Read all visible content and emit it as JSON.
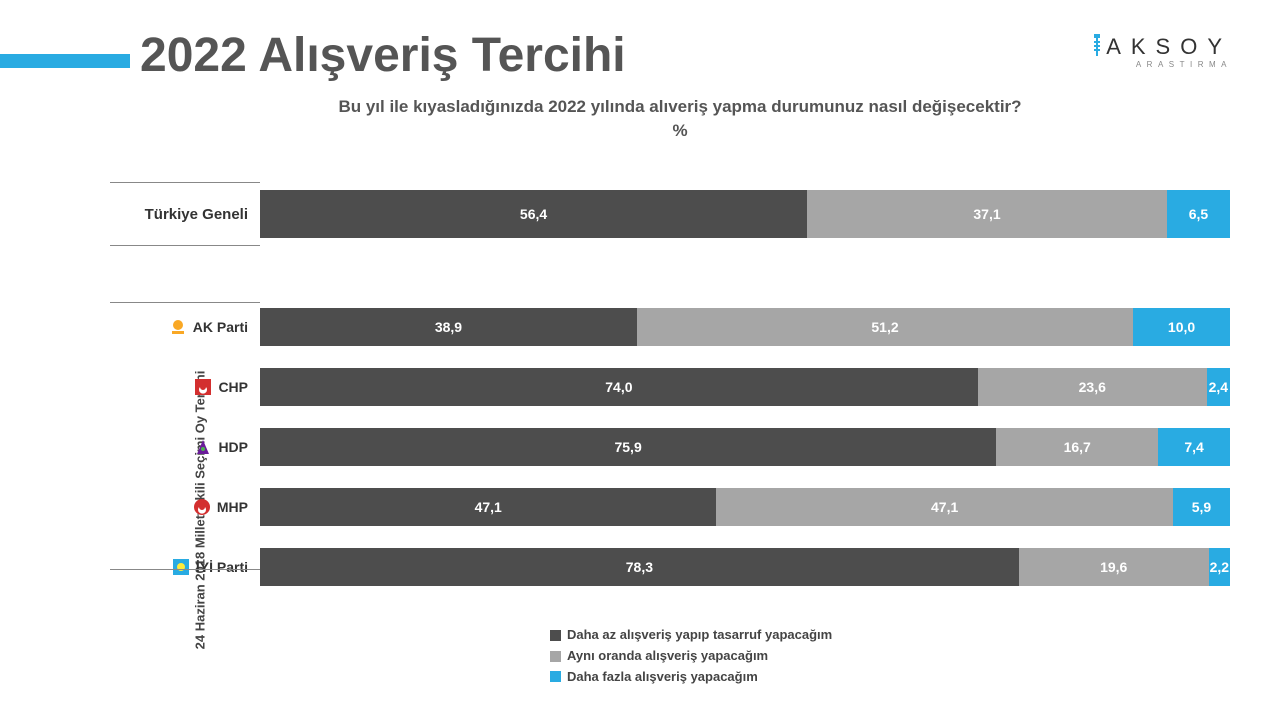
{
  "colors": {
    "accent": "#29abe2",
    "series1": "#4d4d4d",
    "series2": "#a6a6a6",
    "series3": "#29abe2",
    "title": "#5a5a5a"
  },
  "title": "2022 Alışveriş Tercihi",
  "subtitle_line1": "Bu yıl ile kıyasladığınızda 2022 yılında alıveriş yapma durumunuz nasıl değişecektir?",
  "subtitle_line2": "%",
  "logo": {
    "main": "AKSOY",
    "sub": "ARASTIRMA"
  },
  "vertical_axis_label": "24 Haziran 2018 Milletvekili Seçimi Oy Tercihi",
  "legend": [
    "Daha az alışveriş yapıp tasarruf yapacağım",
    "Aynı oranda alışveriş yapacağım",
    "Daha fazla alışveriş yapacağım"
  ],
  "general": {
    "label": "Türkiye Geneli",
    "values": [
      56.4,
      37.1,
      6.5
    ],
    "display": [
      "56,4",
      "37,1",
      "6,5"
    ]
  },
  "parties": [
    {
      "label": "AK Parti",
      "icon": "akp",
      "values": [
        38.9,
        51.2,
        10.0
      ],
      "display": [
        "38,9",
        "51,2",
        "10,0"
      ]
    },
    {
      "label": "CHP",
      "icon": "chp",
      "values": [
        74.0,
        23.6,
        2.4
      ],
      "display": [
        "74,0",
        "23,6",
        "2,4"
      ]
    },
    {
      "label": "HDP",
      "icon": "hdp",
      "values": [
        75.9,
        16.7,
        7.4
      ],
      "display": [
        "75,9",
        "16,7",
        "7,4"
      ]
    },
    {
      "label": "MHP",
      "icon": "mhp",
      "values": [
        47.1,
        47.1,
        5.9
      ],
      "display": [
        "47,1",
        "47,1",
        "5,9"
      ]
    },
    {
      "label": "İYİ Parti",
      "icon": "iyi",
      "values": [
        78.3,
        19.6,
        2.2
      ],
      "display": [
        "78,3",
        "19,6",
        "2,2"
      ]
    }
  ],
  "chart": {
    "bar_height_general": 48,
    "bar_height_party": 38,
    "label_fontsize": 14,
    "value_fontsize": 14
  }
}
